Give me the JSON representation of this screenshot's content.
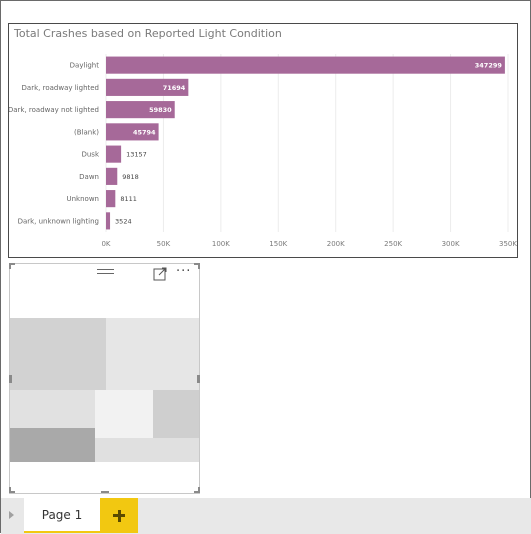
{
  "chart_data": {
    "type": "bar",
    "orientation": "horizontal",
    "title": "Total Crashes based on Reported Light Condition",
    "categories": [
      "Daylight",
      "Dark, roadway lighted",
      "Dark, roadway not lighted",
      "(Blank)",
      "Dusk",
      "Dawn",
      "Unknown",
      "Dark, unknown lighting"
    ],
    "values": [
      347299,
      71694,
      59830,
      45794,
      13157,
      9818,
      8111,
      3524
    ],
    "data_labels": [
      "347299",
      "71694",
      "59830",
      "45794",
      "13157",
      "9818",
      "8111",
      "3524"
    ],
    "xlim": [
      0,
      350000
    ],
    "xticks": [
      0,
      50000,
      100000,
      150000,
      200000,
      250000,
      300000,
      350000
    ],
    "xtick_labels": [
      "0K",
      "50K",
      "100K",
      "150K",
      "200K",
      "250K",
      "300K",
      "350K"
    ],
    "xlabel": "",
    "ylabel": "",
    "grid": true,
    "bar_color": "#a66999"
  },
  "tabs": {
    "page_label": "Page 1",
    "add_label": "+"
  },
  "colors": {
    "accent": "#f2c811",
    "treemap_tiles": [
      "#d2d2d2",
      "#e6e6e6",
      "#e1e1e1",
      "#f2f2f2",
      "#cfcfcf",
      "#a9a9a9",
      "#e0e0e0"
    ]
  },
  "icons": {
    "drag": "drag-grip-icon",
    "focus": "focus-mode-icon",
    "more": "more-options-icon",
    "prev": "chevron-left-icon"
  },
  "more_glyph": "···"
}
